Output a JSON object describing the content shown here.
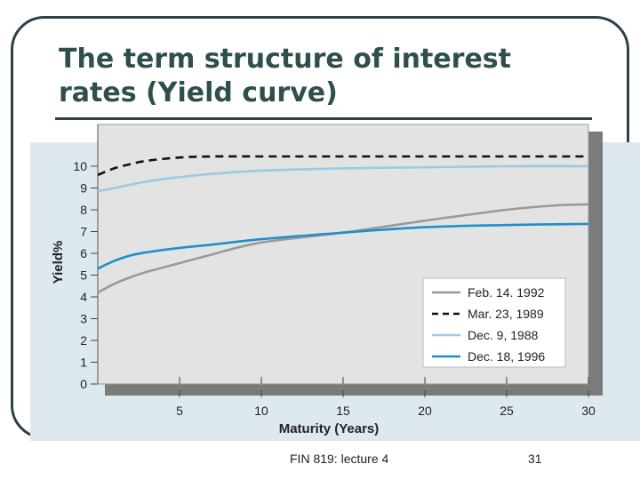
{
  "slide": {
    "title": "The term structure of interest rates (Yield curve)",
    "footer": "FIN 819: lecture 4",
    "page_number": "31"
  },
  "chart_data": {
    "type": "line",
    "xlabel": "Maturity (Years)",
    "ylabel": "Yield%",
    "xlim": [
      0,
      30
    ],
    "ylim": [
      0,
      10
    ],
    "x_ticks": [
      5,
      10,
      15,
      20,
      25,
      30
    ],
    "y_ticks": [
      0,
      1,
      2,
      3,
      4,
      5,
      6,
      7,
      8,
      9,
      10
    ],
    "legend_position": "bottom-right",
    "series": [
      {
        "name": "Feb. 14. 1992",
        "color": "#9a9a9a",
        "dash": "solid",
        "x": [
          0,
          1,
          2,
          3,
          5,
          7,
          10,
          15,
          20,
          25,
          28,
          30
        ],
        "y": [
          4.2,
          4.6,
          4.9,
          5.15,
          5.55,
          5.95,
          6.5,
          6.95,
          7.5,
          8.0,
          8.2,
          8.25
        ]
      },
      {
        "name": "Mar. 23, 1989",
        "color": "#111111",
        "dash": "dashed",
        "x": [
          0,
          1,
          2,
          3,
          5,
          7,
          10,
          15,
          20,
          25,
          30
        ],
        "y": [
          9.6,
          9.9,
          10.1,
          10.25,
          10.4,
          10.45,
          10.45,
          10.45,
          10.45,
          10.45,
          10.45
        ]
      },
      {
        "name": "Dec. 9, 1988",
        "color": "#9cc9e6",
        "dash": "solid",
        "x": [
          0,
          1,
          2,
          3,
          5,
          7,
          10,
          15,
          20,
          25,
          30
        ],
        "y": [
          8.85,
          9.0,
          9.15,
          9.3,
          9.5,
          9.65,
          9.8,
          9.9,
          9.95,
          10.0,
          10.0
        ]
      },
      {
        "name": "Dec. 18, 1996",
        "color": "#1f8fc8",
        "dash": "solid",
        "x": [
          0,
          1,
          2,
          3,
          5,
          7,
          10,
          15,
          20,
          25,
          30
        ],
        "y": [
          5.3,
          5.65,
          5.9,
          6.05,
          6.25,
          6.4,
          6.65,
          6.95,
          7.2,
          7.3,
          7.35
        ]
      }
    ]
  }
}
